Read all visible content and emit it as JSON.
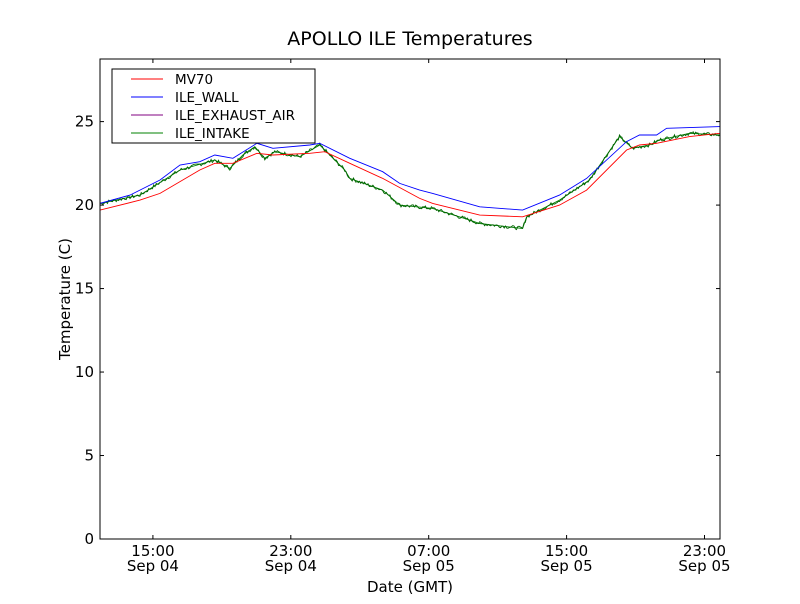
{
  "chart_data": {
    "type": "line",
    "title": "APOLLO ILE Temperatures",
    "xlabel": "Date (GMT)",
    "ylabel": "Temperature (C)",
    "x_units": "hours since Sep 04 00:00 GMT",
    "xlim": [
      11.93,
      47.9
    ],
    "ylim": [
      0,
      28.75
    ],
    "grid": false,
    "legend_position": "top-left",
    "x_ticks": [
      {
        "value": 15,
        "label": "15:00",
        "sublabel": "Sep 04"
      },
      {
        "value": 23,
        "label": "23:00",
        "sublabel": "Sep 04"
      },
      {
        "value": 31,
        "label": "07:00",
        "sublabel": "Sep 05"
      },
      {
        "value": 39,
        "label": "15:00",
        "sublabel": "Sep 05"
      },
      {
        "value": 47,
        "label": "23:00",
        "sublabel": "Sep 05"
      }
    ],
    "y_ticks": [
      {
        "value": 0,
        "label": "0"
      },
      {
        "value": 5,
        "label": "5"
      },
      {
        "value": 10,
        "label": "10"
      },
      {
        "value": 15,
        "label": "15"
      },
      {
        "value": 20,
        "label": "20"
      },
      {
        "value": 25,
        "label": "25"
      }
    ],
    "series": [
      {
        "name": "MV70",
        "color": "#ff0000",
        "noisy": false,
        "points": [
          [
            11.93,
            19.7
          ],
          [
            14.25,
            20.3
          ],
          [
            15.41,
            20.7
          ],
          [
            17.72,
            22.1
          ],
          [
            18.59,
            22.5
          ],
          [
            19.64,
            22.5
          ],
          [
            21.03,
            23.1
          ],
          [
            21.96,
            23.0
          ],
          [
            24.1,
            23.1
          ],
          [
            24.97,
            23.2
          ],
          [
            26.42,
            22.5
          ],
          [
            28.33,
            21.6
          ],
          [
            30.48,
            20.4
          ],
          [
            31.23,
            20.1
          ],
          [
            33.96,
            19.4
          ],
          [
            36.45,
            19.3
          ],
          [
            38.59,
            20.0
          ],
          [
            40.16,
            20.9
          ],
          [
            42.48,
            23.3
          ],
          [
            43.23,
            23.6
          ],
          [
            44.22,
            23.7
          ],
          [
            46.13,
            24.1
          ],
          [
            47.9,
            24.3
          ]
        ]
      },
      {
        "name": "ILE_WALL",
        "color": "#0000ff",
        "noisy": false,
        "points": [
          [
            11.93,
            20.1
          ],
          [
            13.67,
            20.6
          ],
          [
            15.41,
            21.5
          ],
          [
            16.57,
            22.4
          ],
          [
            17.72,
            22.6
          ],
          [
            18.59,
            23.0
          ],
          [
            19.64,
            22.8
          ],
          [
            21.03,
            23.7
          ],
          [
            21.96,
            23.4
          ],
          [
            24.1,
            23.6
          ],
          [
            24.68,
            23.7
          ],
          [
            26.42,
            22.8
          ],
          [
            28.33,
            22.0
          ],
          [
            29.32,
            21.3
          ],
          [
            30.48,
            20.9
          ],
          [
            31.23,
            20.7
          ],
          [
            33.96,
            19.9
          ],
          [
            36.45,
            19.7
          ],
          [
            38.59,
            20.6
          ],
          [
            40.16,
            21.6
          ],
          [
            42.48,
            23.8
          ],
          [
            43.23,
            24.2
          ],
          [
            44.22,
            24.2
          ],
          [
            44.8,
            24.6
          ],
          [
            47.9,
            24.7
          ]
        ]
      },
      {
        "name": "ILE_EXHAUST_AIR",
        "color": "#800080",
        "draw_color": "#006400",
        "noisy": true,
        "points": [
          [
            11.93,
            20.1
          ],
          [
            14.25,
            20.6
          ],
          [
            16.57,
            22.1
          ],
          [
            18.59,
            22.7
          ],
          [
            19.46,
            22.2
          ],
          [
            20.22,
            23.0
          ],
          [
            20.91,
            23.5
          ],
          [
            21.49,
            22.8
          ],
          [
            22.07,
            23.2
          ],
          [
            23.52,
            22.9
          ],
          [
            24.68,
            23.6
          ],
          [
            26.13,
            22.1
          ],
          [
            26.42,
            21.6
          ],
          [
            28.33,
            20.9
          ],
          [
            29.32,
            20.0
          ],
          [
            31.23,
            19.8
          ],
          [
            33.38,
            19.1
          ],
          [
            33.96,
            18.9
          ],
          [
            36.45,
            18.6
          ],
          [
            36.68,
            19.3
          ],
          [
            38.59,
            20.3
          ],
          [
            40.33,
            21.5
          ],
          [
            42.07,
            24.1
          ],
          [
            42.83,
            23.4
          ],
          [
            43.81,
            23.6
          ],
          [
            44.39,
            23.9
          ],
          [
            46.13,
            24.3
          ],
          [
            47.9,
            24.2
          ]
        ]
      },
      {
        "name": "ILE_INTAKE",
        "color": "#008000",
        "noisy": false,
        "points": [
          [
            11.93,
            20.1
          ],
          [
            14.25,
            20.6
          ],
          [
            16.57,
            22.1
          ],
          [
            18.59,
            22.7
          ],
          [
            19.46,
            22.2
          ],
          [
            20.22,
            23.0
          ],
          [
            20.91,
            23.5
          ],
          [
            21.49,
            22.8
          ],
          [
            22.07,
            23.2
          ],
          [
            23.52,
            22.9
          ],
          [
            24.68,
            23.6
          ],
          [
            26.13,
            22.1
          ],
          [
            26.42,
            21.6
          ],
          [
            28.33,
            20.9
          ],
          [
            29.32,
            20.0
          ],
          [
            31.23,
            19.8
          ],
          [
            33.38,
            19.1
          ],
          [
            33.96,
            18.9
          ],
          [
            36.45,
            18.6
          ],
          [
            36.68,
            19.3
          ],
          [
            38.59,
            20.3
          ],
          [
            40.33,
            21.5
          ],
          [
            42.07,
            24.1
          ],
          [
            42.83,
            23.4
          ],
          [
            43.81,
            23.6
          ],
          [
            44.39,
            23.9
          ],
          [
            46.13,
            24.3
          ],
          [
            47.9,
            24.2
          ]
        ]
      }
    ]
  }
}
